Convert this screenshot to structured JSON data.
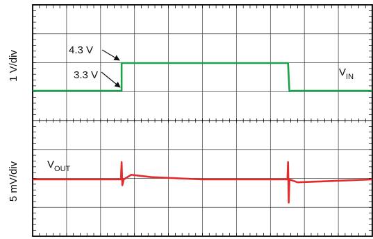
{
  "chart_data": {
    "type": "line",
    "title": "",
    "grid": true,
    "x_divisions": 10,
    "y_divisions": 8,
    "channels": [
      {
        "name": "V_IN",
        "label_main": "V",
        "label_sub": "IN",
        "axis_label": "1 V/div",
        "units": "V",
        "color": "#1aa24a",
        "points": [
          [
            0,
            3.3
          ],
          [
            2.62,
            3.3
          ],
          [
            2.62,
            4.3
          ],
          [
            7.52,
            4.3
          ],
          [
            7.56,
            3.28
          ],
          [
            7.62,
            3.3
          ],
          [
            10,
            3.3
          ]
        ]
      },
      {
        "name": "V_OUT",
        "label_main": "V",
        "label_sub": "OUT",
        "axis_label": "5 mV/div",
        "units": "mV",
        "color": "#e32b2b",
        "points": [
          [
            0,
            0
          ],
          [
            2.6,
            0
          ],
          [
            2.62,
            3
          ],
          [
            2.64,
            -1
          ],
          [
            2.68,
            0
          ],
          [
            2.9,
            0.8
          ],
          [
            3.5,
            0.4
          ],
          [
            5,
            0
          ],
          [
            7.5,
            0
          ],
          [
            7.52,
            3
          ],
          [
            7.54,
            -4
          ],
          [
            7.56,
            0
          ],
          [
            7.8,
            -0.5
          ],
          [
            10,
            0
          ]
        ]
      }
    ],
    "annotations": [
      {
        "text": "4.3 V",
        "points_to": [
          2.62,
          4.3
        ]
      },
      {
        "text": "3.3 V",
        "points_to": [
          2.62,
          3.3
        ]
      }
    ]
  }
}
